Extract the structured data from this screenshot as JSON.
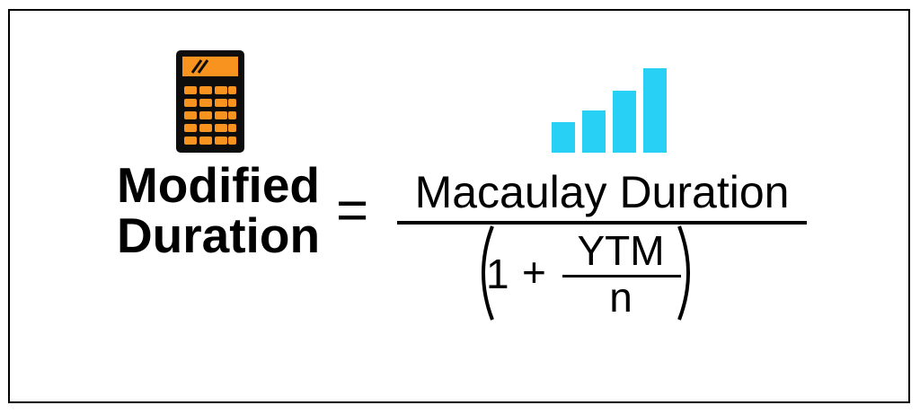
{
  "formula": {
    "lhs_line1": "Modified",
    "lhs_line2": "Duration",
    "equals": "=",
    "numerator": "Macaulay Duration",
    "denominator": {
      "open_paren": "(",
      "one": "1",
      "plus": "+",
      "ytm": "YTM",
      "n": "n",
      "close_paren": ")"
    }
  },
  "icons": {
    "calculator": "calculator-icon",
    "bar_chart": "bar-chart-icon"
  },
  "colors": {
    "calculator_body": "#0d0d0d",
    "calculator_orange": "#f7931e",
    "chart_bars": "#29d0f5",
    "text": "#000000"
  }
}
